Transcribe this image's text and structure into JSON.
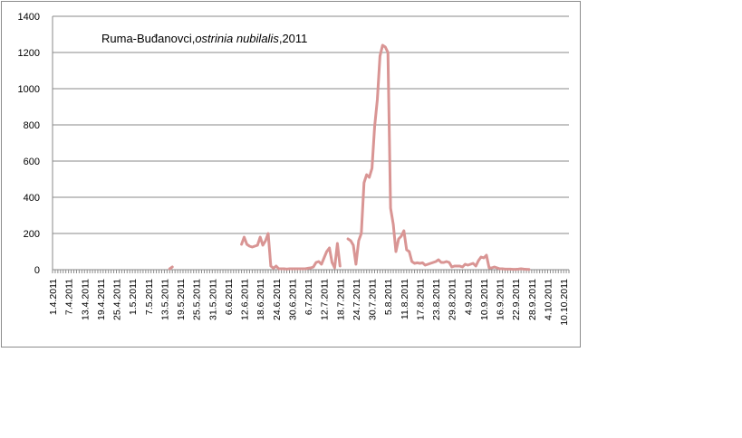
{
  "chart_data": {
    "type": "line",
    "title": {
      "location": "Ruma-Buđanovci,",
      "species": "ostrinia nubilalis",
      "year": ",2011"
    },
    "xlabel": "",
    "ylabel": "",
    "ylim": [
      0,
      1400
    ],
    "yticks": [
      "0",
      "200",
      "400",
      "600",
      "800",
      "1000",
      "1200",
      "1400"
    ],
    "grid": "horizontal",
    "legend": "none",
    "x_start": "1.4.2011",
    "x_end": "12.10.2011",
    "x_tick_labels": [
      "1.4.2011",
      "7.4.2011",
      "13.4.2011",
      "19.4.2011",
      "25.4.2011",
      "1.5.2011",
      "7.5.2011",
      "13.5.2011",
      "19.5.2011",
      "25.5.2011",
      "31.5.2011",
      "6.6.2011",
      "12.6.2011",
      "18.6.2011",
      "24.6.2011",
      "30.6.2011",
      "6.7.2011",
      "12.7.2011",
      "18.7.2011",
      "24.7.2011",
      "30.7.2011",
      "5.8.2011",
      "11.8.2011",
      "17.8.2011",
      "23.8.2011",
      "29.8.2011",
      "4.9.2011",
      "10.9.2011",
      "16.9.2011",
      "22.9.2011",
      "28.9.2011",
      "4.10.2011",
      "10.10.2011"
    ],
    "series_color": "#d99594",
    "series": [
      {
        "segments": [
          [
            [
              "15.5.2011",
              5
            ],
            [
              "16.5.2011",
              15
            ]
          ],
          [
            [
              "11.6.2011",
              140
            ],
            [
              "12.6.2011",
              180
            ],
            [
              "13.6.2011",
              140
            ],
            [
              "14.6.2011",
              130
            ],
            [
              "15.6.2011",
              125
            ],
            [
              "16.6.2011",
              130
            ],
            [
              "17.6.2011",
              135
            ],
            [
              "18.6.2011",
              180
            ],
            [
              "19.6.2011",
              135
            ],
            [
              "20.6.2011",
              160
            ],
            [
              "21.6.2011",
              200
            ],
            [
              "22.6.2011",
              20
            ],
            [
              "23.6.2011",
              8
            ],
            [
              "24.6.2011",
              20
            ],
            [
              "25.6.2011",
              5
            ],
            [
              "26.6.2011",
              5
            ],
            [
              "27.6.2011",
              5
            ],
            [
              "28.6.2011",
              3
            ],
            [
              "29.6.2011",
              5
            ],
            [
              "30.6.2011",
              5
            ],
            [
              "1.7.2011",
              5
            ],
            [
              "2.7.2011",
              5
            ],
            [
              "3.7.2011",
              5
            ],
            [
              "4.7.2011",
              5
            ],
            [
              "5.7.2011",
              5
            ],
            [
              "6.7.2011",
              8
            ],
            [
              "7.7.2011",
              10
            ],
            [
              "8.7.2011",
              15
            ],
            [
              "9.7.2011",
              40
            ],
            [
              "10.7.2011",
              45
            ],
            [
              "11.7.2011",
              30
            ],
            [
              "12.7.2011",
              65
            ],
            [
              "13.7.2011",
              100
            ],
            [
              "14.7.2011",
              120
            ],
            [
              "15.7.2011",
              40
            ],
            [
              "16.7.2011",
              10
            ],
            [
              "17.7.2011",
              145
            ],
            [
              "18.7.2011",
              20
            ]
          ],
          [
            [
              "21.7.2011",
              170
            ],
            [
              "22.7.2011",
              160
            ],
            [
              "23.7.2011",
              135
            ],
            [
              "24.7.2011",
              30
            ],
            [
              "25.7.2011",
              160
            ],
            [
              "26.7.2011",
              200
            ],
            [
              "27.7.2011",
              480
            ],
            [
              "28.7.2011",
              525
            ],
            [
              "29.7.2011",
              510
            ],
            [
              "30.7.2011",
              560
            ],
            [
              "31.7.2011",
              790
            ],
            [
              "1.8.2011",
              940
            ],
            [
              "2.8.2011",
              1180
            ],
            [
              "3.8.2011",
              1240
            ],
            [
              "4.8.2011",
              1230
            ],
            [
              "5.8.2011",
              1200
            ],
            [
              "6.8.2011",
              340
            ],
            [
              "7.8.2011",
              250
            ],
            [
              "8.8.2011",
              100
            ],
            [
              "9.8.2011",
              170
            ],
            [
              "10.8.2011",
              185
            ],
            [
              "11.8.2011",
              215
            ],
            [
              "12.8.2011",
              110
            ],
            [
              "13.8.2011",
              100
            ],
            [
              "14.8.2011",
              45
            ],
            [
              "15.8.2011",
              35
            ],
            [
              "16.8.2011",
              38
            ],
            [
              "17.8.2011",
              35
            ],
            [
              "18.8.2011",
              38
            ],
            [
              "19.8.2011",
              25
            ],
            [
              "20.8.2011",
              30
            ],
            [
              "21.8.2011",
              35
            ],
            [
              "22.8.2011",
              40
            ],
            [
              "23.8.2011",
              45
            ],
            [
              "24.8.2011",
              55
            ],
            [
              "25.8.2011",
              40
            ],
            [
              "26.8.2011",
              40
            ],
            [
              "27.8.2011",
              45
            ],
            [
              "28.8.2011",
              40
            ],
            [
              "29.8.2011",
              15
            ],
            [
              "30.8.2011",
              20
            ],
            [
              "31.8.2011",
              20
            ],
            [
              "1.9.2011",
              20
            ],
            [
              "2.9.2011",
              15
            ],
            [
              "3.9.2011",
              30
            ],
            [
              "4.9.2011",
              25
            ],
            [
              "5.9.2011",
              30
            ],
            [
              "6.9.2011",
              35
            ],
            [
              "7.9.2011",
              20
            ],
            [
              "8.9.2011",
              50
            ],
            [
              "9.9.2011",
              70
            ],
            [
              "10.9.2011",
              65
            ],
            [
              "11.9.2011",
              80
            ],
            [
              "12.9.2011",
              10
            ],
            [
              "13.9.2011",
              10
            ],
            [
              "14.9.2011",
              15
            ],
            [
              "15.9.2011",
              10
            ],
            [
              "16.9.2011",
              5
            ],
            [
              "17.9.2011",
              5
            ],
            [
              "18.9.2011",
              3
            ],
            [
              "19.9.2011",
              3
            ],
            [
              "20.9.2011",
              3
            ],
            [
              "21.9.2011",
              2
            ],
            [
              "22.9.2011",
              2
            ],
            [
              "23.9.2011",
              3
            ],
            [
              "24.9.2011",
              5
            ],
            [
              "25.9.2011",
              3
            ],
            [
              "26.9.2011",
              2
            ],
            [
              "27.9.2011",
              1
            ]
          ]
        ]
      }
    ]
  }
}
